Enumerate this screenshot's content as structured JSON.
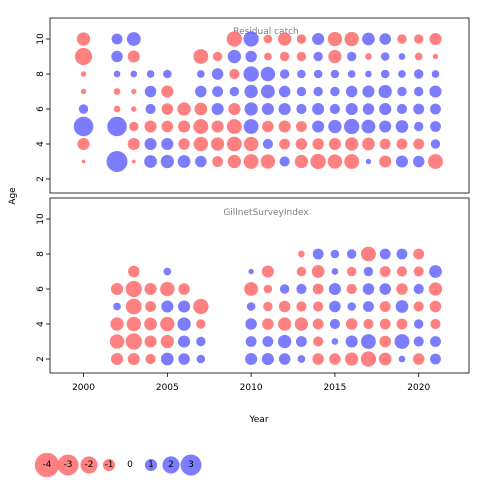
{
  "chart_data": {
    "type": "scatter",
    "encoding": "bubble",
    "xlabel": "Year",
    "ylabel": "Age",
    "xlim": [
      1998,
      2023
    ],
    "ylim": [
      1.2,
      11.2
    ],
    "xticks": [
      2000,
      2005,
      2010,
      2015,
      2020
    ],
    "yticks": [
      2,
      4,
      6,
      8,
      10
    ],
    "colors": {
      "positive": "#5b5bff",
      "negative": "#ff6060"
    },
    "panels": [
      {
        "title": "Residual catch",
        "ages": [
          3,
          4,
          5,
          6,
          7,
          8,
          9,
          10
        ],
        "years": [
          2000,
          2002,
          2003,
          2004,
          2005,
          2006,
          2007,
          2008,
          2009,
          2010,
          2011,
          2012,
          2013,
          2014,
          2015,
          2016,
          2017,
          2018,
          2019,
          2020,
          2021
        ],
        "values": [
          [
            -0.1,
            3.0,
            -0.1,
            1.1,
            1.2,
            1.1,
            0.9,
            -0.8,
            -1.2,
            -1.5,
            -1.4,
            0.7,
            -1.2,
            -1.6,
            -1.4,
            -1.5,
            0.2,
            -1.0,
            1.0,
            0.9,
            -1.5
          ],
          [
            -1.0,
            0.0,
            -1.0,
            1.0,
            1.0,
            -0.9,
            -1.4,
            -1.2,
            -1.5,
            -1.4,
            0.7,
            -0.8,
            -0.9,
            -0.9,
            -1.0,
            -1.2,
            -1.1,
            -0.8,
            -0.8,
            -0.8,
            0.6
          ],
          [
            2.6,
            2.6,
            -0.6,
            -1.0,
            -0.9,
            -1.0,
            -1.5,
            -1.0,
            -1.5,
            1.5,
            -0.9,
            -1.0,
            -0.8,
            1.0,
            1.2,
            1.6,
            1.3,
            1.0,
            1.1,
            0.6,
            0.8
          ],
          [
            0.6,
            -0.3,
            -0.2,
            0.7,
            -0.9,
            -1.2,
            -1.1,
            1.0,
            -1.0,
            1.2,
            1.0,
            1.0,
            0.7,
            1.0,
            0.7,
            1.0,
            0.9,
            1.0,
            0.7,
            0.8,
            0.8
          ],
          [
            -0.2,
            -0.3,
            -0.2,
            0.9,
            -1.0,
            0.0,
            0.9,
            0.8,
            0.6,
            1.2,
            1.3,
            0.9,
            0.6,
            0.6,
            0.6,
            0.9,
            1.0,
            1.2,
            0.6,
            0.6,
            1.0
          ],
          [
            -0.2,
            0.3,
            0.3,
            0.4,
            0.5,
            0.0,
            0.4,
            0.9,
            -0.7,
            1.6,
            1.4,
            0.6,
            0.5,
            0.5,
            0.5,
            0.4,
            0.3,
            0.5,
            0.4,
            0.6,
            0.4
          ],
          [
            -2.0,
            0.9,
            -1.0,
            0.0,
            0.0,
            0.0,
            -1.5,
            -0.6,
            1.2,
            0.9,
            -0.4,
            -0.6,
            -0.6,
            0.6,
            -1.2,
            0.6,
            -0.3,
            0.5,
            0.3,
            -0.4,
            -0.2
          ],
          [
            -1.2,
            0.8,
            1.3,
            0.0,
            0.0,
            0.0,
            0.0,
            0.0,
            -1.6,
            1.6,
            -0.5,
            -1.2,
            -0.6,
            1.0,
            -1.4,
            -1.4,
            1.1,
            0.9,
            -0.6,
            -0.6,
            -1.0
          ]
        ]
      },
      {
        "title": "GillnetSurveyIndex",
        "ages": [
          2,
          3,
          4,
          5,
          6,
          7,
          8
        ],
        "years": [
          2002,
          2003,
          2004,
          2005,
          2006,
          2007,
          2010,
          2011,
          2012,
          2013,
          2014,
          2015,
          2016,
          2017,
          2018,
          2019,
          2020,
          2021
        ],
        "values": [
          [
            -1.0,
            -1.0,
            -0.7,
            1.1,
            0.9,
            0.5,
            1.0,
            1.0,
            0.9,
            0.4,
            -0.9,
            -0.9,
            -1.2,
            -1.6,
            -1.1,
            0.3,
            -0.9,
            0.8
          ],
          [
            -1.4,
            -1.8,
            -1.0,
            -1.2,
            1.0,
            0.6,
            0.8,
            0.8,
            1.2,
            0.8,
            -0.7,
            0.3,
            1.0,
            1.5,
            -0.9,
            1.5,
            0.7,
            0.8
          ],
          [
            -1.2,
            -1.4,
            -1.1,
            -1.4,
            1.2,
            -0.6,
            0.9,
            -0.9,
            -1.2,
            -1.2,
            -0.8,
            0.7,
            -0.9,
            -0.7,
            -0.8,
            -0.8,
            0.6,
            -0.7
          ],
          [
            0.4,
            -1.7,
            -0.8,
            1.0,
            1.0,
            -1.6,
            0.5,
            -0.6,
            -0.9,
            -0.7,
            -0.7,
            0.9,
            0.5,
            0.8,
            -0.8,
            1.1,
            -0.7,
            -0.9
          ],
          [
            -1.0,
            -1.8,
            -1.0,
            -1.4,
            -0.9,
            0.0,
            -1.3,
            -0.5,
            0.6,
            0.7,
            -0.8,
            1.0,
            -0.7,
            0.9,
            0.9,
            -0.9,
            0.7,
            -1.2
          ],
          [
            0.0,
            -0.9,
            0.0,
            0.4,
            0.0,
            0.0,
            0.2,
            -1.0,
            0.0,
            -0.6,
            -1.1,
            0.3,
            -0.6,
            0.6,
            -0.8,
            -0.7,
            -0.7,
            1.1
          ],
          [
            0.0,
            0.0,
            0.0,
            0.0,
            0.0,
            0.0,
            0.0,
            0.0,
            0.0,
            -0.3,
            0.8,
            0.5,
            0.6,
            -1.5,
            0.8,
            0.8,
            -0.8,
            0.0
          ]
        ]
      }
    ],
    "legend": {
      "position": "bottom-left",
      "entries": [
        {
          "label": "-4",
          "value": -4
        },
        {
          "label": "-3",
          "value": -3
        },
        {
          "label": "-2",
          "value": -2
        },
        {
          "label": "-1",
          "value": -1
        },
        {
          "label": "0",
          "value": 0
        },
        {
          "label": "1",
          "value": 1
        },
        {
          "label": "2",
          "value": 2
        },
        {
          "label": "3",
          "value": 3
        }
      ]
    }
  }
}
